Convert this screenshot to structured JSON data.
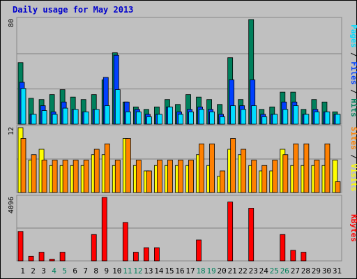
{
  "chart_data": {
    "type": "bar",
    "title": "Daily usage for May 2013",
    "days": [
      1,
      2,
      3,
      4,
      5,
      6,
      7,
      8,
      9,
      10,
      11,
      12,
      13,
      14,
      15,
      16,
      17,
      18,
      19,
      20,
      21,
      22,
      23,
      24,
      25,
      26,
      27,
      28,
      29,
      30,
      31
    ],
    "weekend_days": [
      4,
      5,
      11,
      12,
      18,
      19,
      25,
      26
    ],
    "colors": {
      "pages": "#00805c",
      "files": "#0040ff",
      "hits": "#00ddff",
      "visits": "#ffff00",
      "sites": "#ff8000",
      "kbytes": "#ff0000",
      "weekday_label": "#000000",
      "weekend_label": "#00805c"
    },
    "panels": [
      {
        "id": "hits-files-pages",
        "axis_max": "80",
        "ymax": 85,
        "right_label": [
          {
            "text": "Pages",
            "color": "#00ddff"
          },
          {
            "text": " / ",
            "color": "#000000"
          },
          {
            "text": "Files",
            "color": "#0040ff"
          },
          {
            "text": " / ",
            "color": "#000000"
          },
          {
            "text": "Hits",
            "color": "#00805c"
          }
        ],
        "series": [
          {
            "name": "Hits",
            "color": "#00805c",
            "offset": 0,
            "values": [
              50,
              21,
              20,
              24,
              28,
              22,
              20,
              24,
              36,
              58,
              18,
              14,
              12,
              14,
              20,
              16,
              24,
              22,
              20,
              16,
              54,
              20,
              85,
              12,
              14,
              26,
              26,
              12,
              20,
              18,
              10
            ]
          },
          {
            "name": "Files",
            "color": "#0040ff",
            "offset": 1,
            "values": [
              34,
              8,
              15,
              10,
              18,
              12,
              10,
              12,
              38,
              56,
              18,
              12,
              8,
              8,
              14,
              10,
              12,
              14,
              12,
              8,
              36,
              15,
              36,
              8,
              8,
              18,
              18,
              8,
              12,
              10,
              8
            ]
          },
          {
            "name": "Pages",
            "color": "#00ddff",
            "offset": 2,
            "values": [
              29,
              8,
              11,
              8,
              13,
              12,
              10,
              12,
              15,
              28,
              10,
              10,
              6,
              8,
              14,
              8,
              10,
              12,
              10,
              6,
              15,
              12,
              15,
              6,
              8,
              12,
              15,
              8,
              10,
              10,
              8
            ]
          }
        ]
      },
      {
        "id": "visits-sites",
        "axis_max": "12",
        "ymax": 12,
        "right_label": [
          {
            "text": "Sites",
            "color": "#ff8000"
          },
          {
            "text": " / ",
            "color": "#000000"
          },
          {
            "text": "Visits",
            "color": "#ffff00"
          }
        ],
        "series": [
          {
            "name": "Visits",
            "color": "#ffff00",
            "offset": 0,
            "values": [
              12,
              6,
              8,
              5,
              5,
              5,
              5,
              7,
              7,
              5,
              10,
              5,
              4,
              5,
              5,
              5,
              5,
              7,
              5,
              3,
              8,
              7,
              5,
              4,
              4,
              8,
              5,
              5,
              5,
              5,
              6
            ]
          },
          {
            "name": "Sites",
            "color": "#ff8000",
            "offset": 2,
            "values": [
              10,
              7,
              6,
              6,
              6,
              6,
              6,
              8,
              9,
              6,
              10,
              6,
              4,
              6,
              6,
              6,
              6,
              9,
              9,
              4,
              10,
              8,
              6,
              5,
              6,
              7,
              9,
              9,
              6,
              9,
              2
            ]
          }
        ]
      },
      {
        "id": "kbytes",
        "axis_max": "4096",
        "ymax": 4096,
        "right_label": [
          {
            "text": "KBytes",
            "color": "#ff0000"
          }
        ],
        "series": [
          {
            "name": "KBytes",
            "color": "#ff0000",
            "offset": 0,
            "values": [
              1900,
              300,
              560,
              110,
              560,
              0,
              0,
              1700,
              4096,
              0,
              2480,
              560,
              850,
              850,
              0,
              0,
              0,
              1350,
              0,
              0,
              3800,
              0,
              3400,
              0,
              0,
              1700,
              680,
              560,
              0,
              0,
              0
            ]
          }
        ]
      }
    ]
  }
}
